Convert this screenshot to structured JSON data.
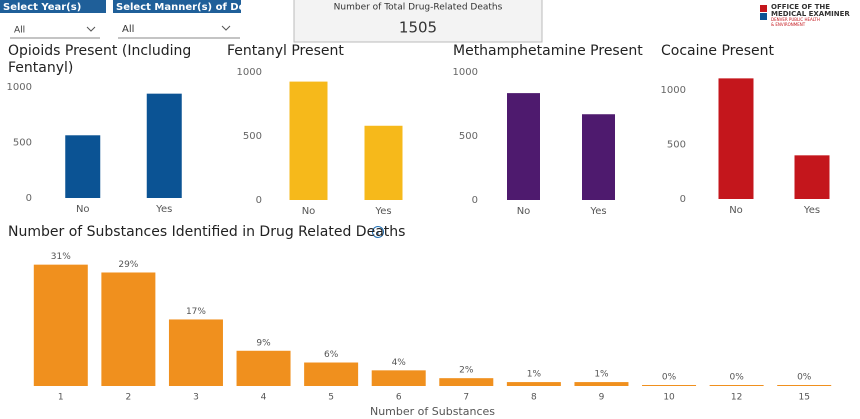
{
  "slicers": [
    {
      "label": "Select Year(s)",
      "value": "All"
    },
    {
      "label": "Select Manner(s) of Death",
      "value": "All"
    }
  ],
  "card": {
    "label": "Number of Total Drug-Related Deaths",
    "value": 1505
  },
  "logo": {
    "line1": "OFFICE OF THE",
    "line2": "MEDICAL EXAMINER",
    "line3": "DENVER PUBLIC HEALTH",
    "line4": "& ENVIRONMENT"
  },
  "chart_data": [
    {
      "type": "bar",
      "title": "Opioids Present (Including Fentanyl)",
      "categories": [
        "No",
        "Yes"
      ],
      "values": [
        565,
        940
      ],
      "color": "#0b5394",
      "ylim": [
        0,
        1000
      ],
      "yticks": [
        0,
        500,
        1000
      ]
    },
    {
      "type": "bar",
      "title": "Fentanyl Present",
      "categories": [
        "No",
        "Yes"
      ],
      "values": [
        925,
        580
      ],
      "color": "#f6b91b",
      "ylim": [
        0,
        1000
      ],
      "yticks": [
        0,
        500,
        1000
      ]
    },
    {
      "type": "bar",
      "title": "Methamphetamine Present",
      "categories": [
        "No",
        "Yes"
      ],
      "values": [
        835,
        670
      ],
      "color": "#4e1a6e",
      "ylim": [
        0,
        1000
      ],
      "yticks": [
        0,
        500,
        1000
      ]
    },
    {
      "type": "bar",
      "title": "Cocaine Present",
      "categories": [
        "No",
        "Yes"
      ],
      "values": [
        1105,
        400
      ],
      "color": "#c4161c",
      "ylim": [
        0,
        1200
      ],
      "yticks": [
        0,
        500,
        1000
      ]
    },
    {
      "type": "bar",
      "title": "Number of Substances Identified in Drug Related Deaths",
      "x_label": "Number of Substances",
      "categories": [
        "1",
        "2",
        "3",
        "4",
        "5",
        "6",
        "7",
        "8",
        "9",
        "10",
        "12",
        "15"
      ],
      "values": [
        31,
        29,
        17,
        9,
        6,
        4,
        2,
        1,
        1,
        0,
        0,
        0
      ],
      "value_labels": [
        "31%",
        "29%",
        "17%",
        "9%",
        "6%",
        "4%",
        "2%",
        "1%",
        "1%",
        "0%",
        "0%",
        "0%"
      ],
      "color": "#f0901e",
      "ylim": [
        0,
        35
      ]
    }
  ]
}
